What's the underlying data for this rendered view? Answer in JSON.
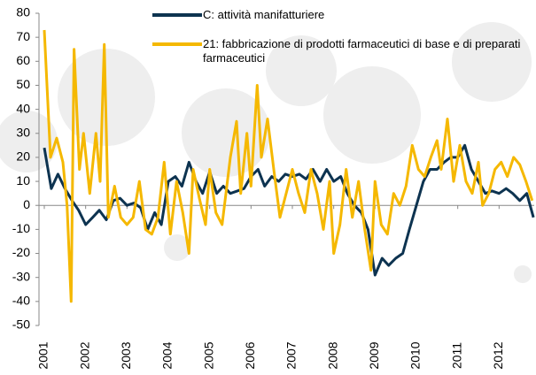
{
  "chart_data": {
    "type": "line",
    "xlim": [
      2001,
      2012.85
    ],
    "xticks": [
      2001,
      2002,
      2003,
      2004,
      2005,
      2006,
      2007,
      2008,
      2009,
      2010,
      2011,
      2012
    ],
    "ylim": [
      -50,
      80
    ],
    "yticks": [
      -50,
      -40,
      -30,
      -20,
      -10,
      0,
      10,
      20,
      30,
      40,
      50,
      60,
      70,
      80
    ],
    "series": [
      {
        "name": "C: attività manifatturiere",
        "color": "#0d3350",
        "x": [
          2001,
          2001.17,
          2001.33,
          2001.5,
          2001.67,
          2001.83,
          2002,
          2002.17,
          2002.33,
          2002.5,
          2002.67,
          2002.83,
          2003,
          2003.17,
          2003.33,
          2003.5,
          2003.67,
          2003.83,
          2004,
          2004.17,
          2004.33,
          2004.5,
          2004.67,
          2004.83,
          2005,
          2005.17,
          2005.33,
          2005.5,
          2005.67,
          2005.83,
          2006,
          2006.17,
          2006.33,
          2006.5,
          2006.67,
          2006.83,
          2007,
          2007.17,
          2007.33,
          2007.5,
          2007.67,
          2007.83,
          2008,
          2008.17,
          2008.33,
          2008.5,
          2008.67,
          2008.83,
          2009,
          2009.17,
          2009.33,
          2009.5,
          2009.67,
          2009.83,
          2010,
          2010.17,
          2010.33,
          2010.5,
          2010.67,
          2010.83,
          2011,
          2011.17,
          2011.33,
          2011.5,
          2011.67,
          2011.83,
          2012,
          2012.17,
          2012.33,
          2012.5,
          2012.67,
          2012.83
        ],
        "values": [
          24,
          7,
          13,
          7,
          2,
          -2,
          -8,
          -5,
          -2,
          -6,
          2,
          3,
          0,
          1,
          -1,
          -10,
          -3,
          -8,
          10,
          12,
          8,
          18,
          10,
          5,
          14,
          5,
          8,
          5,
          6,
          7,
          12,
          15,
          8,
          12,
          10,
          13,
          12,
          13,
          11,
          15,
          10,
          15,
          10,
          12,
          5,
          0,
          -3,
          -10,
          -29,
          -22,
          -25,
          -22,
          -20,
          -10,
          0,
          10,
          15,
          15,
          18,
          20,
          20,
          25,
          15,
          10,
          5,
          6,
          5,
          7,
          5,
          2,
          5,
          -5
        ]
      },
      {
        "name": "21: fabbricazione di prodotti farmaceutici di base e di preparati farmaceutici",
        "color": "#f5b800",
        "x": [
          2001,
          2001.15,
          2001.3,
          2001.45,
          2001.55,
          2001.65,
          2001.72,
          2001.85,
          2001.95,
          2002.1,
          2002.25,
          2002.35,
          2002.45,
          2002.55,
          2002.7,
          2002.85,
          2003,
          2003.15,
          2003.3,
          2003.45,
          2003.6,
          2003.75,
          2003.9,
          2004.05,
          2004.2,
          2004.35,
          2004.5,
          2004.6,
          2004.75,
          2004.9,
          2005,
          2005.15,
          2005.3,
          2005.5,
          2005.65,
          2005.75,
          2005.9,
          2006,
          2006.15,
          2006.25,
          2006.4,
          2006.55,
          2006.7,
          2006.85,
          2007,
          2007.15,
          2007.3,
          2007.45,
          2007.6,
          2007.75,
          2007.9,
          2008,
          2008.15,
          2008.3,
          2008.45,
          2008.6,
          2008.75,
          2008.9,
          2009,
          2009.15,
          2009.3,
          2009.45,
          2009.6,
          2009.75,
          2009.9,
          2010.05,
          2010.2,
          2010.35,
          2010.5,
          2010.6,
          2010.75,
          2010.9,
          2011.05,
          2011.2,
          2011.35,
          2011.5,
          2011.6,
          2011.75,
          2011.9,
          2012.05,
          2012.2,
          2012.35,
          2012.5,
          2012.65,
          2012.8
        ],
        "values": [
          73,
          20,
          28,
          18,
          0,
          -40,
          65,
          15,
          30,
          5,
          30,
          10,
          67,
          -5,
          8,
          -5,
          -8,
          -5,
          10,
          -10,
          -12,
          -5,
          18,
          -12,
          10,
          -3,
          -20,
          15,
          3,
          -8,
          15,
          -3,
          -8,
          20,
          35,
          5,
          30,
          8,
          50,
          20,
          36,
          15,
          -5,
          5,
          15,
          5,
          -3,
          15,
          5,
          -10,
          10,
          -20,
          -8,
          15,
          -5,
          10,
          -10,
          -27,
          10,
          -8,
          -12,
          5,
          0,
          8,
          25,
          15,
          12,
          20,
          27,
          15,
          36,
          10,
          25,
          10,
          5,
          18,
          0,
          5,
          15,
          18,
          12,
          20,
          17,
          10,
          2
        ]
      }
    ]
  }
}
